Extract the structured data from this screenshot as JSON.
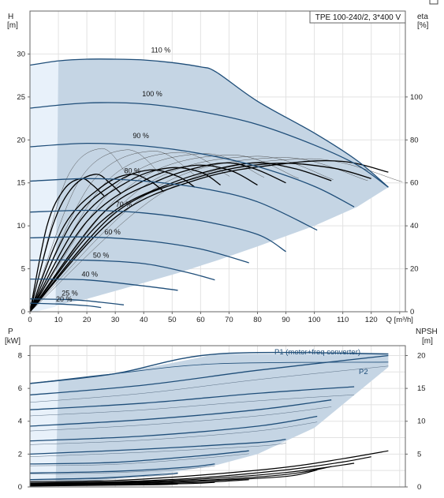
{
  "chart_data": [
    {
      "type": "line",
      "title": "TPE 100-240/2, 3*400 V",
      "ylabel": "H",
      "yunit": "[m]",
      "y2label": "eta",
      "y2unit": "[%]",
      "xlabel": "Q",
      "xunit": "[m³/h]",
      "xlim": [
        0,
        132
      ],
      "ylim": [
        0,
        35
      ],
      "y2lim": [
        0,
        140
      ],
      "x_ticks": [
        "0",
        "10",
        "20",
        "30",
        "40",
        "50",
        "60",
        "70",
        "80",
        "90",
        "100",
        "110",
        "120",
        "Q [m³/h]"
      ],
      "y_ticks": [
        "0",
        "5",
        "10",
        "15",
        "20",
        "25",
        "30"
      ],
      "y2_ticks": [
        "0",
        "20",
        "40",
        "60",
        "80",
        "100"
      ],
      "grid": true,
      "operating_area": {
        "color": "#c5d5e4",
        "color_left": "#e8f1fa",
        "upper_x": [
          0,
          10,
          20,
          30,
          40,
          50,
          60,
          65.5,
          80,
          100,
          115,
          126
        ],
        "upper_h": [
          28.7,
          29.2,
          29.4,
          29.4,
          29.3,
          29.0,
          28.5,
          27.9,
          24.5,
          20.8,
          17.6,
          14.5
        ],
        "lower_x": [
          2,
          10,
          20,
          33,
          52,
          66,
          80,
          100,
          115,
          126
        ],
        "lower_h": [
          0,
          0.8,
          1.5,
          2.7,
          4.5,
          6.0,
          7.6,
          10.0,
          12.2,
          14.5
        ]
      },
      "speed_curves": {
        "color": "#1f4e79",
        "series": [
          {
            "name": "110 %",
            "x": [
              0,
              10,
              20,
              30,
              40,
              50,
              60,
              65.5,
              80,
              100,
              115,
              126
            ],
            "h": [
              28.7,
              29.2,
              29.4,
              29.4,
              29.3,
              29.0,
              28.5,
              27.9,
              24.5,
              20.8,
              17.6,
              14.5
            ]
          },
          {
            "name": "100 %",
            "x": [
              0,
              20,
              40,
              60,
              80,
              100,
              115,
              126
            ],
            "h": [
              23.7,
              24.3,
              24.2,
              23.3,
              21.8,
              19.4,
              17.1,
              14.5
            ]
          },
          {
            "name": "90 %",
            "x": [
              0,
              20,
              40,
              60,
              80,
              100,
              114
            ],
            "h": [
              19.2,
              19.6,
              19.3,
              18.4,
              16.9,
              14.6,
              12.2
            ]
          },
          {
            "name": "80 %",
            "x": [
              0,
              20,
              40,
              60,
              80,
              101
            ],
            "h": [
              15.2,
              15.5,
              15.2,
              14.4,
              12.8,
              9.5
            ]
          },
          {
            "name": "70 %",
            "x": [
              0,
              20,
              40,
              60,
              80,
              90
            ],
            "h": [
              11.6,
              11.8,
              11.5,
              10.6,
              9.0,
              7.0
            ]
          },
          {
            "name": "60 %",
            "x": [
              0,
              20,
              40,
              60,
              77
            ],
            "h": [
              8.6,
              8.7,
              8.3,
              7.3,
              5.7
            ]
          },
          {
            "name": "50 %",
            "x": [
              0,
              20,
              40,
              55,
              65
            ],
            "h": [
              6.0,
              6.0,
              5.6,
              4.6,
              3.7
            ]
          },
          {
            "name": "40 %",
            "x": [
              0,
              20,
              40,
              52
            ],
            "h": [
              3.8,
              3.7,
              3.0,
              2.5
            ]
          },
          {
            "name": "25 %",
            "x": [
              0,
              15,
              25,
              33
            ],
            "h": [
              1.5,
              1.4,
              1.1,
              0.8
            ]
          },
          {
            "name": "20 %",
            "x": [
              0,
              10,
              20,
              25
            ],
            "h": [
              1.0,
              0.9,
              0.7,
              0.5
            ]
          }
        ],
        "label_positions": [
          {
            "text": "110 %",
            "q": 46,
            "h": 30.2
          },
          {
            "text": "100 %",
            "q": 43,
            "h": 25.1
          },
          {
            "text": "90 %",
            "q": 39,
            "h": 20.2
          },
          {
            "text": "80 %",
            "q": 36,
            "h": 16.1
          },
          {
            "text": "70 %",
            "q": 33,
            "h": 12.2
          },
          {
            "text": "60 %",
            "q": 29,
            "h": 9.0
          },
          {
            "text": "50 %",
            "q": 25,
            "h": 6.3
          },
          {
            "text": "40 %",
            "q": 21,
            "h": 4.1
          },
          {
            "text": "25 %",
            "q": 14,
            "h": 1.9
          },
          {
            "text": "20 %",
            "q": 12,
            "h": 1.2
          }
        ]
      },
      "efficiency_curves": {
        "color": "#000000",
        "series": [
          {
            "name": "110 %",
            "x": [
              0,
              30,
              60,
              90,
              110,
              126
            ],
            "eta": [
              0,
              44,
              62,
              69,
              70,
              65
            ]
          },
          {
            "name": "100 %",
            "x": [
              0,
              30,
              60,
              85,
              106,
              120
            ],
            "eta": [
              0,
              46,
              63,
              69,
              67,
              62
            ]
          },
          {
            "name": "90 %",
            "x": [
              0,
              25,
              50,
              76,
              92,
              106
            ],
            "eta": [
              0,
              42,
              60,
              69,
              67,
              61
            ]
          },
          {
            "name": "80 %",
            "x": [
              0,
              25,
              45,
              66,
              78,
              90
            ],
            "eta": [
              0,
              45,
              61,
              69,
              67,
              60
            ]
          },
          {
            "name": "70 %",
            "x": [
              0,
              20,
              40,
              57,
              70,
              80
            ],
            "eta": [
              0,
              42,
              61,
              68,
              66,
              59
            ]
          },
          {
            "name": "60 %",
            "x": [
              0,
              18,
              35,
              49,
              60,
              67
            ],
            "eta": [
              0,
              43,
              61,
              67,
              65,
              59
            ]
          },
          {
            "name": "50 %",
            "x": [
              0,
              15,
              30,
              42,
              52,
              58
            ],
            "eta": [
              0,
              42,
              60,
              66,
              63,
              58
            ]
          },
          {
            "name": "40 %",
            "x": [
              0,
              12,
              25,
              35,
              42,
              47
            ],
            "eta": [
              0,
              40,
              58,
              64,
              61,
              56
            ]
          },
          {
            "name": "25 %",
            "x": [
              0,
              8,
              15,
              23,
              28,
              32
            ],
            "eta": [
              0,
              40,
              58,
              64,
              60,
              55
            ]
          },
          {
            "name": "20 %",
            "x": [
              0,
              6,
              12,
              18,
              22,
              26
            ],
            "eta": [
              0,
              40,
              57,
              62,
              59,
              54
            ]
          }
        ]
      }
    },
    {
      "type": "line",
      "ylabel": "P",
      "yunit": "[kW]",
      "y2label": "NPSH",
      "y2unit": "[m]",
      "xlim": [
        0,
        132
      ],
      "ylim": [
        0,
        8.6
      ],
      "y2lim": [
        0,
        21.5
      ],
      "y_ticks": [
        "0",
        "2",
        "4",
        "6",
        "8"
      ],
      "y2_ticks": [
        "0",
        "5",
        "10",
        "15",
        "20"
      ],
      "grid": true,
      "operating_area": {
        "color": "#c5d5e4",
        "color_left": "#e8f1fa",
        "upper_x": [
          0,
          10,
          30,
          50,
          66,
          80,
          100,
          126
        ],
        "upper_p": [
          6.3,
          6.45,
          6.9,
          7.55,
          8.1,
          8.1,
          8.1,
          8.1
        ],
        "lower_x": [
          2,
          10,
          33,
          52,
          66,
          80,
          100,
          126
        ],
        "lower_p": [
          0,
          0.15,
          0.55,
          0.95,
          1.35,
          2.0,
          3.6,
          7.3
        ]
      },
      "power_series": [
        {
          "name": "P1 (motor+freq converter)",
          "x": [
            0,
            30,
            66,
            126
          ],
          "p": [
            6.3,
            6.9,
            8.1,
            8.1
          ]
        },
        {
          "name": "P2",
          "x": [
            0,
            30,
            66,
            126
          ],
          "p": [
            6.3,
            6.9,
            7.5,
            7.6
          ]
        }
      ],
      "power_curves_by_speed": [
        {
          "x": [
            0,
            40,
            80,
            126
          ],
          "p": [
            5.6,
            6.2,
            7.1,
            8.0
          ]
        },
        {
          "x": [
            0,
            40,
            80,
            114
          ],
          "p": [
            4.7,
            5.1,
            5.7,
            6.1
          ]
        },
        {
          "x": [
            0,
            40,
            80,
            106
          ],
          "p": [
            3.7,
            4.1,
            4.7,
            5.3
          ]
        },
        {
          "x": [
            0,
            40,
            80,
            101
          ],
          "p": [
            2.8,
            3.1,
            3.7,
            4.3
          ]
        },
        {
          "x": [
            0,
            40,
            80,
            90
          ],
          "p": [
            2.0,
            2.3,
            2.7,
            2.9
          ]
        },
        {
          "x": [
            0,
            30,
            60,
            77
          ],
          "p": [
            1.4,
            1.5,
            1.9,
            2.2
          ]
        },
        {
          "x": [
            0,
            30,
            55,
            65
          ],
          "p": [
            0.85,
            0.95,
            1.2,
            1.4
          ]
        },
        {
          "x": [
            0,
            25,
            45,
            52
          ],
          "p": [
            0.45,
            0.55,
            0.75,
            0.85
          ]
        },
        {
          "x": [
            0,
            20,
            33
          ],
          "p": [
            0.15,
            0.2,
            0.3
          ]
        },
        {
          "x": [
            0,
            15,
            25
          ],
          "p": [
            0.08,
            0.1,
            0.15
          ]
        }
      ],
      "npsh_curves": [
        {
          "x": [
            0,
            30,
            60,
            90,
            110,
            126
          ],
          "npsh": [
            0.8,
            1.0,
            1.8,
            3.0,
            4.3,
            5.5
          ]
        },
        {
          "x": [
            0,
            30,
            60,
            90,
            110,
            120
          ],
          "npsh": [
            0.6,
            0.8,
            1.4,
            2.6,
            3.8,
            4.6
          ]
        },
        {
          "x": [
            0,
            30,
            60,
            90,
            114
          ],
          "npsh": [
            0.5,
            0.7,
            1.2,
            2.2,
            3.6
          ]
        },
        {
          "x": [
            0,
            30,
            60,
            90,
            106
          ],
          "npsh": [
            0.4,
            0.6,
            1.0,
            1.9,
            3.1
          ]
        },
        {
          "x": [
            0,
            30,
            60,
            90,
            101
          ],
          "npsh": [
            0.3,
            0.5,
            0.9,
            1.6,
            2.6
          ]
        },
        {
          "x": [
            0,
            30,
            60,
            77
          ],
          "npsh": [
            0.25,
            0.4,
            0.7,
            1.1
          ]
        },
        {
          "x": [
            0,
            30,
            55,
            65
          ],
          "npsh": [
            0.2,
            0.35,
            0.5,
            0.7
          ]
        },
        {
          "x": [
            0,
            25,
            45,
            52
          ],
          "npsh": [
            0.15,
            0.25,
            0.35,
            0.45
          ]
        }
      ]
    }
  ]
}
